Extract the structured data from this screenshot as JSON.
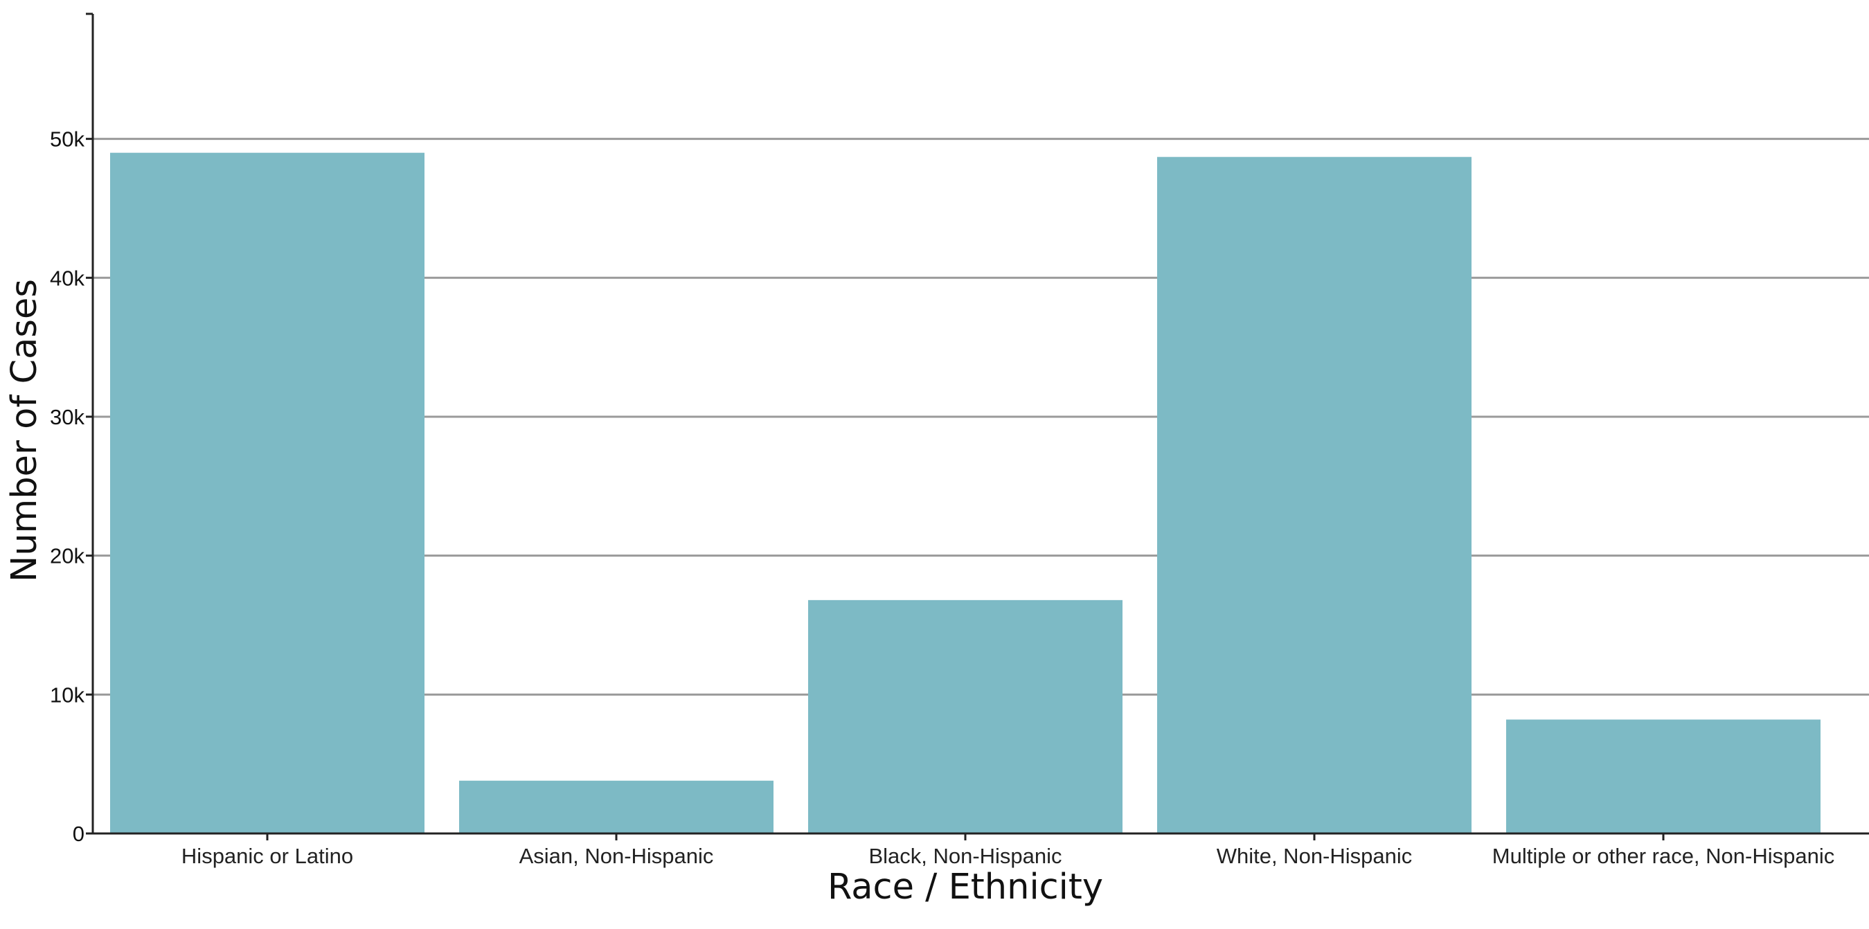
{
  "chart_data": {
    "type": "bar",
    "categories": [
      "Hispanic or Latino",
      "Asian, Non-Hispanic",
      "Black, Non-Hispanic",
      "White, Non-Hispanic",
      "Multiple or other race, Non-Hispanic"
    ],
    "values": [
      49000,
      3800,
      16800,
      48700,
      8200
    ],
    "xlabel": "Race / Ethnicity",
    "ylabel": "Number of Cases",
    "ylim": [
      0,
      59000
    ],
    "yticks": [
      0,
      10000,
      20000,
      30000,
      40000,
      50000
    ],
    "ytick_labels": [
      "0",
      "10k",
      "20k",
      "30k",
      "40k",
      "50k"
    ],
    "bar_color": "#7dbac5",
    "grid": true
  }
}
